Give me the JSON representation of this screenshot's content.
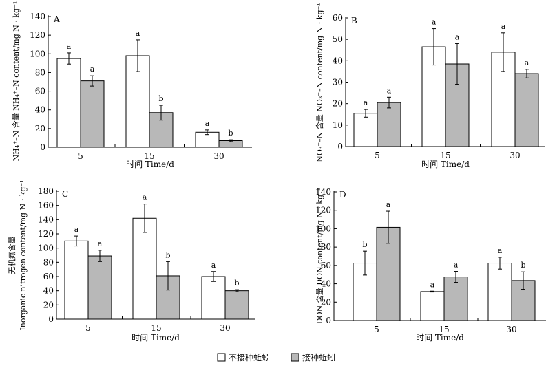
{
  "legend": {
    "series": [
      {
        "name": "不接种蚯蚓",
        "fill": "#ffffff"
      },
      {
        "name": "接种蚯蚓",
        "fill": "#b8b8b8"
      }
    ]
  },
  "chart_data": [
    {
      "type": "bar",
      "panel": "A",
      "categories": [
        "5",
        "15",
        "30"
      ],
      "xlabel": "时间 Time/d",
      "ylabel_lines": [
        "NH₄⁺–N 含量 NH₄⁺–N content/mg N · kg⁻¹"
      ],
      "ylim": [
        0,
        140
      ],
      "yticks": [
        0,
        20,
        40,
        60,
        80,
        100,
        120,
        140
      ],
      "series": [
        {
          "name": "不接种蚯蚓",
          "values": [
            95,
            98,
            16
          ],
          "errors": [
            6,
            17,
            2.5
          ],
          "labels": [
            "a",
            "a",
            "a"
          ]
        },
        {
          "name": "接种蚯蚓",
          "values": [
            71,
            37,
            7
          ],
          "errors": [
            5.5,
            8,
            1
          ],
          "labels": [
            "a",
            "b",
            "b"
          ]
        }
      ]
    },
    {
      "type": "bar",
      "panel": "B",
      "categories": [
        "5",
        "15",
        "30"
      ],
      "xlabel": "时间 Time/d",
      "ylabel_lines": [
        "NO₃⁻–N 含量 NO₃⁻–N content/mg N · kg⁻¹"
      ],
      "ylim": [
        0,
        60
      ],
      "yticks": [
        0,
        10,
        20,
        30,
        40,
        50,
        60
      ],
      "series": [
        {
          "name": "不接种蚯蚓",
          "values": [
            15.5,
            46.5,
            44
          ],
          "errors": [
            1.8,
            8.5,
            9
          ],
          "labels": [
            "a",
            "a",
            "a"
          ]
        },
        {
          "name": "接种蚯蚓",
          "values": [
            20.5,
            38.5,
            34
          ],
          "errors": [
            2.5,
            9.5,
            2
          ],
          "labels": [
            "a",
            "a",
            "a"
          ]
        }
      ]
    },
    {
      "type": "bar",
      "panel": "C",
      "categories": [
        "5",
        "15",
        "30"
      ],
      "xlabel": "时间 Time/d",
      "ylabel_lines": [
        "无机氮含量",
        "Inorganic nitrogen content/mg N · kg⁻¹"
      ],
      "ylim": [
        0,
        180
      ],
      "yticks": [
        0,
        20,
        40,
        60,
        80,
        100,
        120,
        140,
        160,
        180
      ],
      "series": [
        {
          "name": "不接种蚯蚓",
          "values": [
            110,
            142,
            60
          ],
          "errors": [
            7,
            20,
            7
          ],
          "labels": [
            "a",
            "a",
            "a"
          ]
        },
        {
          "name": "接种蚯蚓",
          "values": [
            89,
            61,
            40
          ],
          "errors": [
            8,
            20,
            1.5
          ],
          "labels": [
            "a",
            "b",
            "b"
          ]
        }
      ]
    },
    {
      "type": "bar",
      "panel": "D",
      "categories": [
        "5",
        "15",
        "30"
      ],
      "xlabel": "时间 Time/d",
      "ylabel_lines": [
        "DON 含量 DON content/mg N · kg⁻¹"
      ],
      "ylim": [
        0,
        140
      ],
      "yticks": [
        0,
        20,
        40,
        60,
        80,
        100,
        120,
        140
      ],
      "series": [
        {
          "name": "不接种蚯蚓",
          "values": [
            62.5,
            31.5,
            62.5
          ],
          "errors": [
            13,
            0.5,
            6.5
          ],
          "labels": [
            "b",
            "a",
            "a"
          ]
        },
        {
          "name": "接种蚯蚓",
          "values": [
            101.5,
            47.5,
            43.5
          ],
          "errors": [
            17.5,
            6,
            9.5
          ],
          "labels": [
            "a",
            "a",
            "b"
          ]
        }
      ]
    }
  ]
}
